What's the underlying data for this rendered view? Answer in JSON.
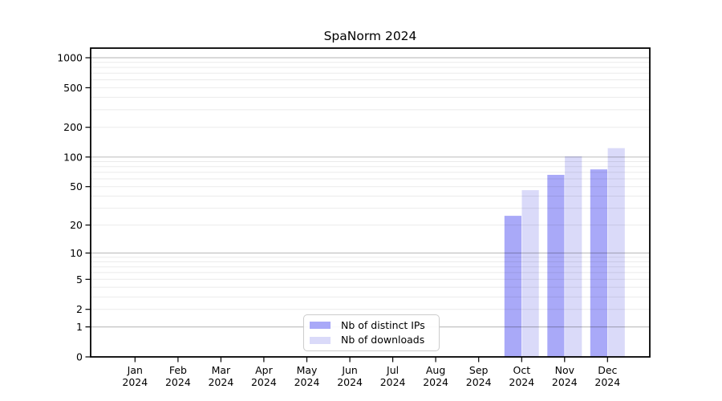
{
  "title": "SpaNorm 2024",
  "chart_data": {
    "type": "bar",
    "title": "SpaNorm 2024",
    "categories": [
      "Jan 2024",
      "Feb 2024",
      "Mar 2024",
      "Apr 2024",
      "May 2024",
      "Jun 2024",
      "Jul 2024",
      "Aug 2024",
      "Sep 2024",
      "Oct 2024",
      "Nov 2024",
      "Dec 2024"
    ],
    "series": [
      {
        "name": "Nb of distinct IPs",
        "color": "#a9a9f8",
        "values": [
          0,
          0,
          0,
          0,
          0,
          0,
          0,
          0,
          0,
          25,
          66,
          75
        ]
      },
      {
        "name": "Nb of downloads",
        "color": "#dadaf9",
        "values": [
          0,
          0,
          0,
          0,
          0,
          0,
          0,
          0,
          0,
          46,
          102,
          123
        ]
      }
    ],
    "y_ticks": [
      0,
      1,
      2,
      5,
      10,
      20,
      50,
      100,
      200,
      500,
      1000
    ],
    "y_scale": "log10(1+x)",
    "ylim": [
      0,
      1200
    ],
    "xlabel": "",
    "ylabel": "",
    "grid": "horizontal major+minor (log decades)",
    "legend_position": "lower center inside axes",
    "axis_color": "#000000",
    "major_grid_color": "#c2c2c2",
    "minor_grid_color": "#ebebeb"
  }
}
